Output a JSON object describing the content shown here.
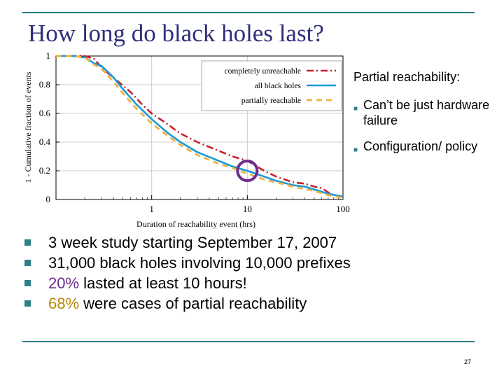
{
  "slide": {
    "title": "How long do black holes last?",
    "page_number": "27"
  },
  "side_panel": {
    "heading": "Partial reachability:",
    "subbullets": [
      "Can’t be just hardware failure",
      "Configuration/ policy"
    ]
  },
  "bullets": [
    {
      "text": "3 week study starting September 17, 2007"
    },
    {
      "text": "31,000 black holes involving 10,000 prefixes"
    },
    {
      "highlight": "20%",
      "rest": " lasted at least 10 hours!"
    },
    {
      "highlight": "68%",
      "rest": " were cases of partial reachability"
    }
  ],
  "colors": {
    "title": "#2e2e7a",
    "rule": "#2f7f86",
    "completely_unreachable": "#c8202e",
    "all_black_holes": "#1a9ad6",
    "partially_reachable": "#f0b040",
    "highlight_20": "#6e2c8c",
    "highlight_68": "#b8860b"
  },
  "chart_data": {
    "type": "line",
    "xlabel": "Duration of reachability event (hrs)",
    "ylabel": "1 - Cumulative fraction of events",
    "xscale": "log",
    "xlim": [
      0.1,
      100
    ],
    "ylim": [
      0,
      1
    ],
    "xticks": [
      1,
      10,
      100
    ],
    "yticks": [
      0,
      0.2,
      0.4,
      0.6,
      0.8,
      1
    ],
    "ytick_labels": [
      "0",
      "0.2",
      "0.4",
      "0.6",
      "0.8",
      "1"
    ],
    "grid": true,
    "legend_position": "top-right",
    "series": [
      {
        "name": "completely unreachable",
        "style": "dash-dot",
        "x": [
          0.1,
          0.15,
          0.2,
          0.25,
          0.3,
          0.35,
          0.45,
          0.6,
          0.8,
          1,
          1.5,
          2,
          3,
          5,
          7,
          10,
          15,
          20,
          30,
          40,
          50,
          60,
          70,
          80,
          100
        ],
        "y": [
          1,
          1,
          1,
          0.98,
          0.92,
          0.88,
          0.82,
          0.75,
          0.66,
          0.6,
          0.52,
          0.46,
          0.4,
          0.34,
          0.3,
          0.27,
          0.2,
          0.16,
          0.12,
          0.11,
          0.09,
          0.08,
          0.05,
          0.03,
          0.02
        ]
      },
      {
        "name": "all black holes",
        "style": "solid",
        "x": [
          0.1,
          0.15,
          0.2,
          0.25,
          0.3,
          0.4,
          0.5,
          0.7,
          1,
          1.5,
          2,
          3,
          5,
          7,
          10,
          15,
          20,
          30,
          40,
          50,
          70,
          100
        ],
        "y": [
          1,
          1,
          0.99,
          0.95,
          0.93,
          0.85,
          0.77,
          0.66,
          0.56,
          0.46,
          0.4,
          0.33,
          0.27,
          0.23,
          0.2,
          0.16,
          0.13,
          0.1,
          0.09,
          0.07,
          0.04,
          0.02
        ]
      },
      {
        "name": "partially reachable",
        "style": "dashed",
        "x": [
          0.1,
          0.15,
          0.2,
          0.25,
          0.3,
          0.4,
          0.5,
          0.7,
          1,
          1.5,
          2,
          3,
          5,
          7,
          10,
          15,
          20,
          30,
          50,
          70,
          100
        ],
        "y": [
          1,
          1,
          0.99,
          0.94,
          0.91,
          0.82,
          0.74,
          0.63,
          0.53,
          0.44,
          0.38,
          0.31,
          0.25,
          0.22,
          0.18,
          0.14,
          0.12,
          0.09,
          0.06,
          0.03,
          0.01
        ]
      }
    ],
    "annotation": {
      "type": "circle",
      "x": 10,
      "y": 0.2
    }
  }
}
